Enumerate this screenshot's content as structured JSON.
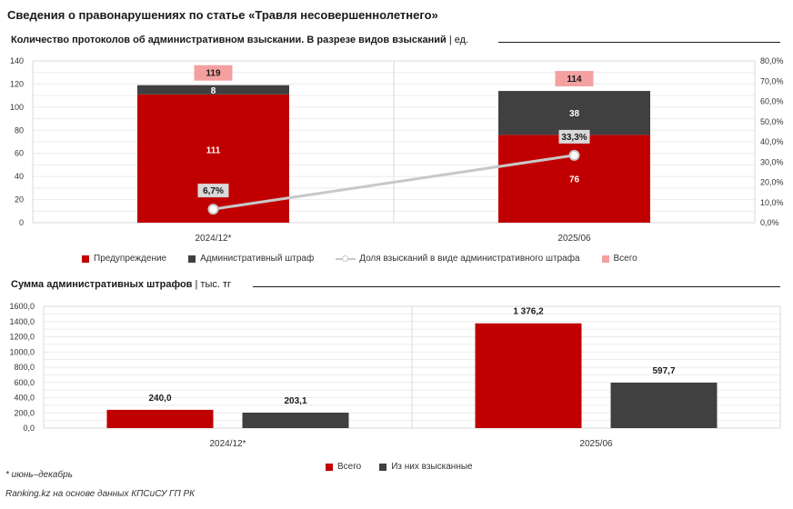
{
  "title": "Сведения о правонарушениях по статье «Травля несовершеннолетнего»",
  "chart1": {
    "title": "Количество протоколов об административном взыскании. В разрезе видов взысканий",
    "unit": "| ед."
  },
  "chart2": {
    "title": "Сумма административных штрафов",
    "unit": "| тыс. тг"
  },
  "colors": {
    "red": "#c00000",
    "dark": "#404040",
    "pink": "#f4a0a0",
    "line": "#c8c8c8"
  },
  "chart_data": [
    {
      "type": "bar",
      "stacked": true,
      "title": "Количество протоколов об административном взыскании. В разрезе видов взысканий",
      "unit": "ед.",
      "categories": [
        "2024/12*",
        "2025/06"
      ],
      "series": [
        {
          "name": "Предупреждение",
          "values": [
            111,
            76
          ],
          "labels": [
            "111",
            "76"
          ]
        },
        {
          "name": "Административный штраф",
          "values": [
            8,
            38
          ],
          "labels": [
            "8",
            "38"
          ]
        },
        {
          "name": "Всего",
          "values": [
            119,
            114
          ],
          "labels": [
            "119",
            "114"
          ]
        },
        {
          "name": "Доля взысканий в виде административного штрафа",
          "type": "line",
          "axis": "secondary",
          "values": [
            6.7,
            33.3
          ],
          "labels": [
            "6,7%",
            "33,3%"
          ]
        }
      ],
      "y_ticks": [
        "0",
        "20",
        "40",
        "60",
        "80",
        "100",
        "120",
        "140"
      ],
      "ylim": [
        0,
        140
      ],
      "y2_ticks": [
        "0,0%",
        "10,0%",
        "20,0%",
        "30,0%",
        "40,0%",
        "50,0%",
        "60,0%",
        "70,0%",
        "80,0%"
      ],
      "y2lim": [
        0,
        80
      ],
      "legend": [
        "Предупреждение",
        "Административный штраф",
        "Доля взысканий в виде административного штрафа",
        "Всего"
      ]
    },
    {
      "type": "bar",
      "title": "Сумма административных штрафов",
      "unit": "тыс. тг",
      "categories": [
        "2024/12*",
        "2025/06"
      ],
      "series": [
        {
          "name": "Всего",
          "values": [
            240.0,
            1376.2
          ],
          "labels": [
            "240,0",
            "1 376,2"
          ]
        },
        {
          "name": "Из них взысканные",
          "values": [
            203.1,
            597.7
          ],
          "labels": [
            "203,1",
            "597,7"
          ]
        }
      ],
      "y_ticks": [
        "0,0",
        "200,0",
        "400,0",
        "600,0",
        "800,0",
        "1000,0",
        "1200,0",
        "1400,0",
        "1600,0"
      ],
      "ylim": [
        0,
        1600
      ],
      "legend": [
        "Всего",
        "Из них взысканные"
      ]
    }
  ],
  "footnote": "* июнь–декабрь",
  "source": "Ranking.kz на основе данных КПСиСУ ГП РК"
}
